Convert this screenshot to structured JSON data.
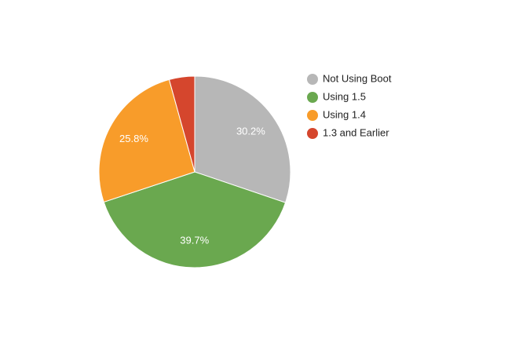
{
  "chart_data": {
    "type": "pie",
    "categories": [
      "Not Using Boot",
      "Using 1.5",
      "Using 1.4",
      "1.3 and Earlier"
    ],
    "values": [
      30.2,
      39.7,
      25.8,
      4.3
    ],
    "value_labels": [
      "30.2%",
      "39.7%",
      "25.8%",
      null
    ],
    "colors": [
      "#b7b7b7",
      "#6aa84f",
      "#f89c2a",
      "#d5462d"
    ],
    "legend": "right"
  }
}
